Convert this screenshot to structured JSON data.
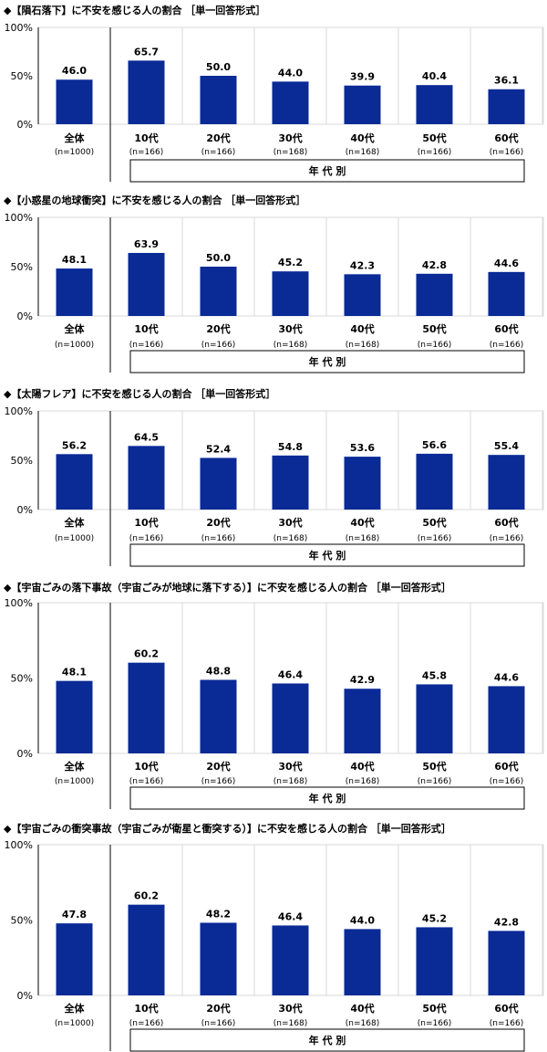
{
  "group_label": "年 代 別",
  "y_ticks": [
    "0%",
    "50%",
    "100%"
  ],
  "categories": [
    "全体",
    "10代",
    "20代",
    "30代",
    "40代",
    "50代",
    "60代"
  ],
  "sample_sizes": [
    "(n=1000)",
    "(n=166)",
    "(n=166)",
    "(n=168)",
    "(n=168)",
    "(n=166)",
    "(n=166)"
  ],
  "colors": {
    "bar": "#0A2A96",
    "grid": "#d9d9d9"
  },
  "chart_data": [
    {
      "type": "bar",
      "title": "◆【隕石落下】に不安を感じる人の割合 ［単一回答形式］",
      "categories": [
        "全体",
        "10代",
        "20代",
        "30代",
        "40代",
        "50代",
        "60代"
      ],
      "values": [
        46.0,
        65.7,
        50.0,
        44.0,
        39.9,
        40.4,
        36.1
      ],
      "ylim": [
        0,
        100
      ]
    },
    {
      "type": "bar",
      "title": "◆【小惑星の地球衝突】に不安を感じる人の割合 ［単一回答形式］",
      "categories": [
        "全体",
        "10代",
        "20代",
        "30代",
        "40代",
        "50代",
        "60代"
      ],
      "values": [
        48.1,
        63.9,
        50.0,
        45.2,
        42.3,
        42.8,
        44.6
      ],
      "ylim": [
        0,
        100
      ]
    },
    {
      "type": "bar",
      "title": "◆【太陽フレア】に不安を感じる人の割合 ［単一回答形式］",
      "categories": [
        "全体",
        "10代",
        "20代",
        "30代",
        "40代",
        "50代",
        "60代"
      ],
      "values": [
        56.2,
        64.5,
        52.4,
        54.8,
        53.6,
        56.6,
        55.4
      ],
      "ylim": [
        0,
        100
      ]
    },
    {
      "type": "bar",
      "title": "◆【宇宙ごみの落下事故（宇宙ごみが地球に落下する）】に不安を感じる人の割合 ［単一回答形式］",
      "categories": [
        "全体",
        "10代",
        "20代",
        "30代",
        "40代",
        "50代",
        "60代"
      ],
      "values": [
        48.1,
        60.2,
        48.8,
        46.4,
        42.9,
        45.8,
        44.6
      ],
      "ylim": [
        0,
        100
      ]
    },
    {
      "type": "bar",
      "title": "◆【宇宙ごみの衝突事故（宇宙ごみが衛星と衝突する）】に不安を感じる人の割合 ［単一回答形式］",
      "categories": [
        "全体",
        "10代",
        "20代",
        "30代",
        "40代",
        "50代",
        "60代"
      ],
      "values": [
        47.8,
        60.2,
        48.2,
        46.4,
        44.0,
        45.2,
        42.8
      ],
      "ylim": [
        0,
        100
      ]
    }
  ]
}
